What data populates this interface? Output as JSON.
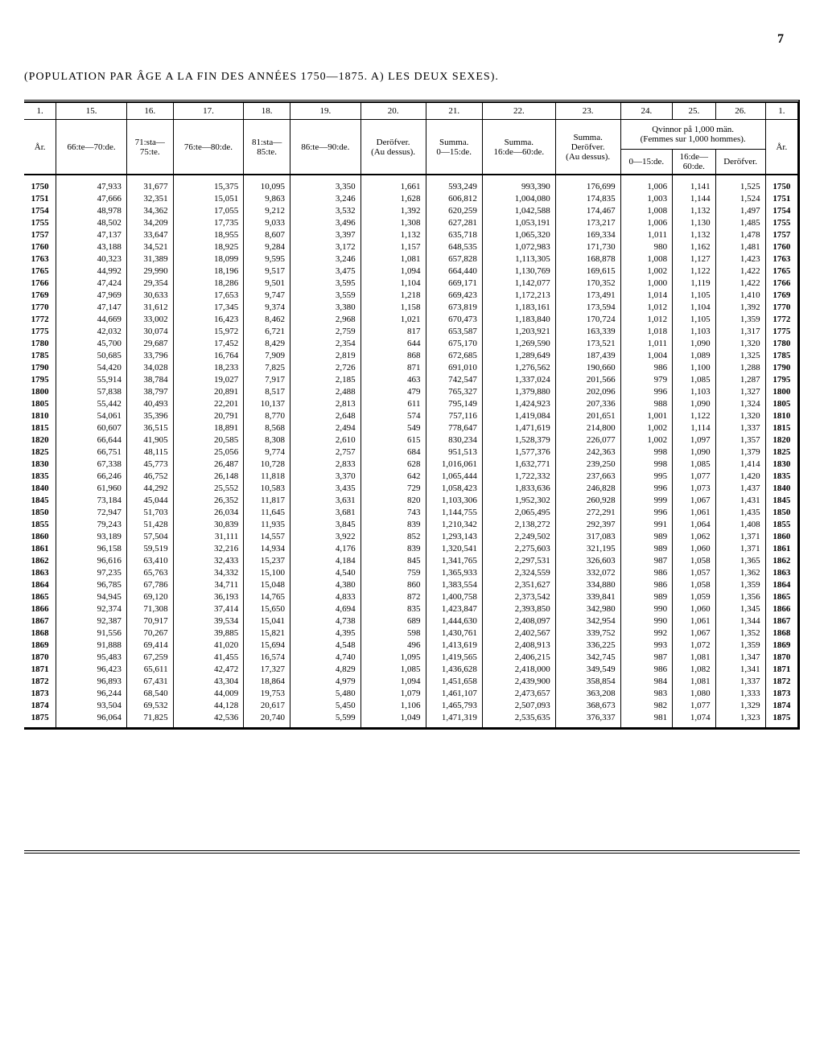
{
  "page_number": "7",
  "title": "(POPULATION PAR ÂGE A LA FIN DES ANNÉES 1750—1875.  A) LES DEUX SEXES).",
  "col_numbers": [
    "1.",
    "15.",
    "16.",
    "17.",
    "18.",
    "19.",
    "20.",
    "21.",
    "22.",
    "23.",
    "24.",
    "25.",
    "26.",
    "1."
  ],
  "headers": {
    "ar": "År.",
    "c15": "66:te—70:de.",
    "c16_a": "71:sta—",
    "c16_b": "75:te.",
    "c17": "76:te—80:de.",
    "c18_a": "81:sta—",
    "c18_b": "85:te.",
    "c19": "86:te—90:de.",
    "c20_a": "Deröfver.",
    "c20_b": "(Au dessus).",
    "c21_a": "Summa.",
    "c21_b": "0—15:de.",
    "c22_a": "Summa.",
    "c22_b": "16:de—60:de.",
    "c23_a": "Summa.",
    "c23_b": "Deröfver.",
    "c23_c": "(Au dessus).",
    "c24_26_a": "Qvinnor på 1,000 män.",
    "c24_26_b": "(Femmes sur 1,000 hommes).",
    "c24": "0—15:de.",
    "c25_a": "16:de—",
    "c25_b": "60:de.",
    "c26": "Deröfver."
  },
  "rows": [
    [
      "1750",
      "47,933",
      "31,677",
      "15,375",
      "10,095",
      "3,350",
      "1,661",
      "593,249",
      "993,390",
      "176,699",
      "1,006",
      "1,141",
      "1,525",
      "1750"
    ],
    [
      "1751",
      "47,666",
      "32,351",
      "15,051",
      "9,863",
      "3,246",
      "1,628",
      "606,812",
      "1,004,080",
      "174,835",
      "1,003",
      "1,144",
      "1,524",
      "1751"
    ],
    [
      "1754",
      "48,978",
      "34,362",
      "17,055",
      "9,212",
      "3,532",
      "1,392",
      "620,259",
      "1,042,588",
      "174,467",
      "1,008",
      "1,132",
      "1,497",
      "1754"
    ],
    [
      "1755",
      "48,502",
      "34,209",
      "17,735",
      "9,033",
      "3,496",
      "1,308",
      "627,281",
      "1,053,191",
      "173,217",
      "1,006",
      "1,130",
      "1,485",
      "1755"
    ],
    [
      "1757",
      "47,137",
      "33,647",
      "18,955",
      "8,607",
      "3,397",
      "1,132",
      "635,718",
      "1,065,320",
      "169,334",
      "1,011",
      "1,132",
      "1,478",
      "1757"
    ],
    [
      "1760",
      "43,188",
      "34,521",
      "18,925",
      "9,284",
      "3,172",
      "1,157",
      "648,535",
      "1,072,983",
      "171,730",
      "980",
      "1,162",
      "1,481",
      "1760"
    ],
    [
      "1763",
      "40,323",
      "31,389",
      "18,099",
      "9,595",
      "3,246",
      "1,081",
      "657,828",
      "1,113,305",
      "168,878",
      "1,008",
      "1,127",
      "1,423",
      "1763"
    ],
    [
      "1765",
      "44,992",
      "29,990",
      "18,196",
      "9,517",
      "3,475",
      "1,094",
      "664,440",
      "1,130,769",
      "169,615",
      "1,002",
      "1,122",
      "1,422",
      "1765"
    ],
    [
      "1766",
      "47,424",
      "29,354",
      "18,286",
      "9,501",
      "3,595",
      "1,104",
      "669,171",
      "1,142,077",
      "170,352",
      "1,000",
      "1,119",
      "1,422",
      "1766"
    ],
    [
      "1769",
      "47,969",
      "30,633",
      "17,653",
      "9,747",
      "3,559",
      "1,218",
      "669,423",
      "1,172,213",
      "173,491",
      "1,014",
      "1,105",
      "1,410",
      "1769"
    ],
    [
      "1770",
      "47,147",
      "31,612",
      "17,345",
      "9,374",
      "3,380",
      "1,158",
      "673,819",
      "1,183,161",
      "173,594",
      "1,012",
      "1,104",
      "1,392",
      "1770"
    ],
    [
      "1772",
      "44,669",
      "33,002",
      "16,423",
      "8,462",
      "2,968",
      "1,021",
      "670,473",
      "1,183,840",
      "170,724",
      "1,012",
      "1,105",
      "1,359",
      "1772"
    ],
    [
      "1775",
      "42,032",
      "30,074",
      "15,972",
      "6,721",
      "2,759",
      "817",
      "653,587",
      "1,203,921",
      "163,339",
      "1,018",
      "1,103",
      "1,317",
      "1775"
    ],
    [
      "1780",
      "45,700",
      "29,687",
      "17,452",
      "8,429",
      "2,354",
      "644",
      "675,170",
      "1,269,590",
      "173,521",
      "1,011",
      "1,090",
      "1,320",
      "1780"
    ],
    [
      "1785",
      "50,685",
      "33,796",
      "16,764",
      "7,909",
      "2,819",
      "868",
      "672,685",
      "1,289,649",
      "187,439",
      "1,004",
      "1,089",
      "1,325",
      "1785"
    ],
    [
      "1790",
      "54,420",
      "34,028",
      "18,233",
      "7,825",
      "2,726",
      "871",
      "691,010",
      "1,276,562",
      "190,660",
      "986",
      "1,100",
      "1,288",
      "1790"
    ],
    [
      "1795",
      "55,914",
      "38,784",
      "19,027",
      "7,917",
      "2,185",
      "463",
      "742,547",
      "1,337,024",
      "201,566",
      "979",
      "1,085",
      "1,287",
      "1795"
    ],
    [
      "1800",
      "57,838",
      "38,797",
      "20,891",
      "8,517",
      "2,488",
      "479",
      "765,327",
      "1,379,880",
      "202,096",
      "996",
      "1,103",
      "1,327",
      "1800"
    ],
    [
      "1805",
      "55,442",
      "40,493",
      "22,201",
      "10,137",
      "2,813",
      "611",
      "795,149",
      "1,424,923",
      "207,336",
      "988",
      "1,090",
      "1,324",
      "1805"
    ],
    [
      "1810",
      "54,061",
      "35,396",
      "20,791",
      "8,770",
      "2,648",
      "574",
      "757,116",
      "1,419,084",
      "201,651",
      "1,001",
      "1,122",
      "1,320",
      "1810"
    ],
    [
      "1815",
      "60,607",
      "36,515",
      "18,891",
      "8,568",
      "2,494",
      "549",
      "778,647",
      "1,471,619",
      "214,800",
      "1,002",
      "1,114",
      "1,337",
      "1815"
    ],
    [
      "1820",
      "66,644",
      "41,905",
      "20,585",
      "8,308",
      "2,610",
      "615",
      "830,234",
      "1,528,379",
      "226,077",
      "1,002",
      "1,097",
      "1,357",
      "1820"
    ],
    [
      "1825",
      "66,751",
      "48,115",
      "25,056",
      "9,774",
      "2,757",
      "684",
      "951,513",
      "1,577,376",
      "242,363",
      "998",
      "1,090",
      "1,379",
      "1825"
    ],
    [
      "1830",
      "67,338",
      "45,773",
      "26,487",
      "10,728",
      "2,833",
      "628",
      "1,016,061",
      "1,632,771",
      "239,250",
      "998",
      "1,085",
      "1,414",
      "1830"
    ],
    [
      "1835",
      "66,246",
      "46,752",
      "26,148",
      "11,818",
      "3,370",
      "642",
      "1,065,444",
      "1,722,332",
      "237,663",
      "995",
      "1,077",
      "1,420",
      "1835"
    ],
    [
      "1840",
      "61,960",
      "44,292",
      "25,552",
      "10,583",
      "3,435",
      "729",
      "1,058,423",
      "1,833,636",
      "246,828",
      "996",
      "1,073",
      "1,437",
      "1840"
    ],
    [
      "1845",
      "73,184",
      "45,044",
      "26,352",
      "11,817",
      "3,631",
      "820",
      "1,103,306",
      "1,952,302",
      "260,928",
      "999",
      "1,067",
      "1,431",
      "1845"
    ],
    [
      "1850",
      "72,947",
      "51,703",
      "26,034",
      "11,645",
      "3,681",
      "743",
      "1,144,755",
      "2,065,495",
      "272,291",
      "996",
      "1,061",
      "1,435",
      "1850"
    ],
    [
      "1855",
      "79,243",
      "51,428",
      "30,839",
      "11,935",
      "3,845",
      "839",
      "1,210,342",
      "2,138,272",
      "292,397",
      "991",
      "1,064",
      "1,408",
      "1855"
    ],
    [
      "1860",
      "93,189",
      "57,504",
      "31,111",
      "14,557",
      "3,922",
      "852",
      "1,293,143",
      "2,249,502",
      "317,083",
      "989",
      "1,062",
      "1,371",
      "1860"
    ],
    [
      "1861",
      "96,158",
      "59,519",
      "32,216",
      "14,934",
      "4,176",
      "839",
      "1,320,541",
      "2,275,603",
      "321,195",
      "989",
      "1,060",
      "1,371",
      "1861"
    ],
    [
      "1862",
      "96,616",
      "63,410",
      "32,433",
      "15,237",
      "4,184",
      "845",
      "1,341,765",
      "2,297,531",
      "326,603",
      "987",
      "1,058",
      "1,365",
      "1862"
    ],
    [
      "1863",
      "97,235",
      "65,763",
      "34,332",
      "15,100",
      "4,540",
      "759",
      "1,365,933",
      "2,324,559",
      "332,072",
      "986",
      "1,057",
      "1,362",
      "1863"
    ],
    [
      "1864",
      "96,785",
      "67,786",
      "34,711",
      "15,048",
      "4,380",
      "860",
      "1,383,554",
      "2,351,627",
      "334,880",
      "986",
      "1,058",
      "1,359",
      "1864"
    ],
    [
      "1865",
      "94,945",
      "69,120",
      "36,193",
      "14,765",
      "4,833",
      "872",
      "1,400,758",
      "2,373,542",
      "339,841",
      "989",
      "1,059",
      "1,356",
      "1865"
    ],
    [
      "1866",
      "92,374",
      "71,308",
      "37,414",
      "15,650",
      "4,694",
      "835",
      "1,423,847",
      "2,393,850",
      "342,980",
      "990",
      "1,060",
      "1,345",
      "1866"
    ],
    [
      "1867",
      "92,387",
      "70,917",
      "39,534",
      "15,041",
      "4,738",
      "689",
      "1,444,630",
      "2,408,097",
      "342,954",
      "990",
      "1,061",
      "1,344",
      "1867"
    ],
    [
      "1868",
      "91,556",
      "70,267",
      "39,885",
      "15,821",
      "4,395",
      "598",
      "1,430,761",
      "2,402,567",
      "339,752",
      "992",
      "1,067",
      "1,352",
      "1868"
    ],
    [
      "1869",
      "91,888",
      "69,414",
      "41,020",
      "15,694",
      "4,548",
      "496",
      "1,413,619",
      "2,408,913",
      "336,225",
      "993",
      "1,072",
      "1,359",
      "1869"
    ],
    [
      "1870",
      "95,483",
      "67,259",
      "41,455",
      "16,574",
      "4,740",
      "1,095",
      "1,419,565",
      "2,406,215",
      "342,745",
      "987",
      "1,081",
      "1,347",
      "1870"
    ],
    [
      "1871",
      "96,423",
      "65,611",
      "42,472",
      "17,327",
      "4,829",
      "1,085",
      "1,436,628",
      "2,418,000",
      "349,549",
      "986",
      "1,082",
      "1,341",
      "1871"
    ],
    [
      "1872",
      "96,893",
      "67,431",
      "43,304",
      "18,864",
      "4,979",
      "1,094",
      "1,451,658",
      "2,439,900",
      "358,854",
      "984",
      "1,081",
      "1,337",
      "1872"
    ],
    [
      "1873",
      "96,244",
      "68,540",
      "44,009",
      "19,753",
      "5,480",
      "1,079",
      "1,461,107",
      "2,473,657",
      "363,208",
      "983",
      "1,080",
      "1,333",
      "1873"
    ],
    [
      "1874",
      "93,504",
      "69,532",
      "44,128",
      "20,617",
      "5,450",
      "1,106",
      "1,465,793",
      "2,507,093",
      "368,673",
      "982",
      "1,077",
      "1,329",
      "1874"
    ],
    [
      "1875",
      "96,064",
      "71,825",
      "42,536",
      "20,740",
      "5,599",
      "1,049",
      "1,471,319",
      "2,535,635",
      "376,337",
      "981",
      "1,074",
      "1,323",
      "1875"
    ]
  ]
}
